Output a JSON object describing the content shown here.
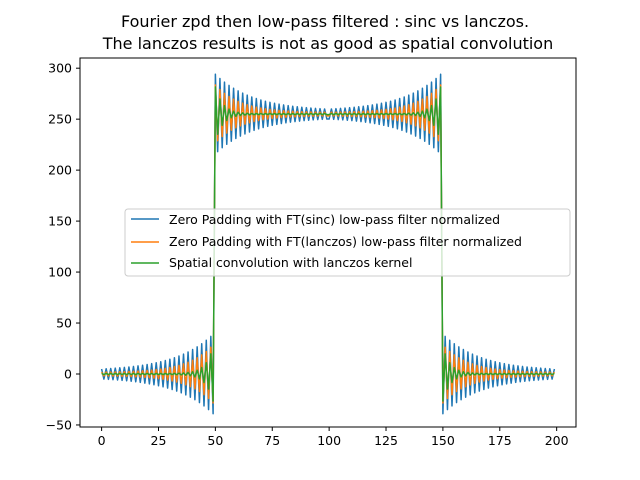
{
  "chart_data": {
    "type": "line",
    "title_lines": [
      "Fourier zpd then low-pass filtered : sinc vs lanczos.",
      "The lanczos results is not as good as spatial convolution"
    ],
    "xlabel": "",
    "ylabel": "",
    "xlim": [
      -9.5,
      208.5
    ],
    "ylim": [
      -52,
      310
    ],
    "xticks": [
      0,
      25,
      50,
      75,
      100,
      125,
      150,
      175,
      200
    ],
    "yticks": [
      -50,
      0,
      50,
      100,
      150,
      200,
      250,
      300
    ],
    "grid": false,
    "legend_location": "center-right",
    "x_range": [
      0,
      199
    ],
    "series": [
      {
        "name": "Zero Padding with FT(sinc) low-pass filter normalized",
        "color": "#1f77b4",
        "model": {
          "low": 0,
          "high": 255,
          "step_up": 49.5,
          "step_down": 149.5,
          "overshoot": 36,
          "ripple_period": 4,
          "ripple_floor": 3,
          "decay": 0.06
        }
      },
      {
        "name": "Zero Padding with FT(lanczos) low-pass filter normalized",
        "color": "#ff7f0e",
        "model": {
          "low": 0,
          "high": 255,
          "step_up": 49.5,
          "step_down": 149.5,
          "overshoot": 27,
          "ripple_period": 4,
          "ripple_floor": 1.5,
          "decay": 0.09
        }
      },
      {
        "name": "Spatial convolution with lanczos kernel",
        "color": "#2ca02c",
        "model": {
          "low": 0,
          "high": 255,
          "step_up": 49.5,
          "step_down": 149.5,
          "overshoot": 26,
          "ripple_period": 4,
          "ripple_floor": 0.5,
          "decay": 0.3
        }
      }
    ]
  }
}
